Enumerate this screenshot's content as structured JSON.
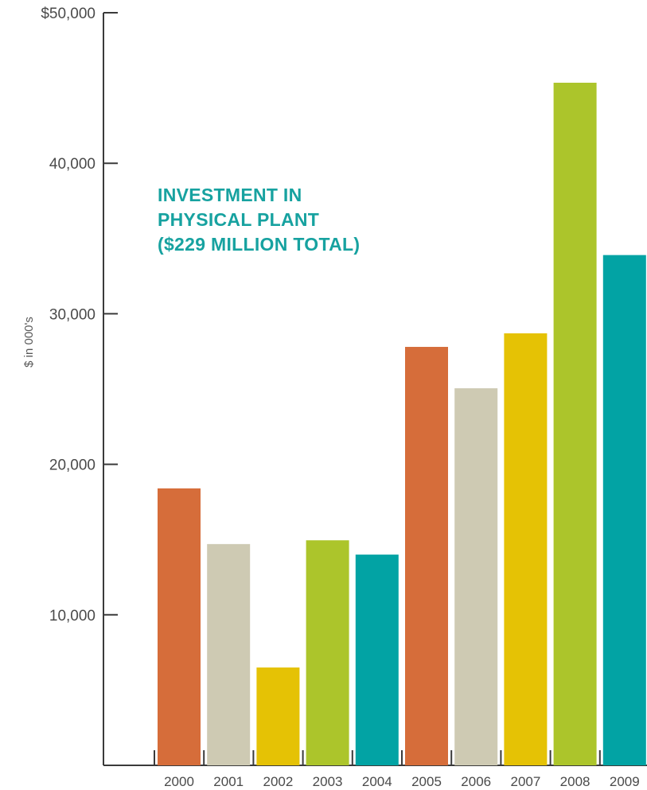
{
  "chart_data": {
    "type": "bar",
    "title_lines": [
      "INVESTMENT IN",
      "PHYSICAL PLANT",
      "($229 MILLION TOTAL)"
    ],
    "ylabel": "$ in 000's",
    "xlabel": "",
    "ylim": [
      0,
      50000
    ],
    "yticks": [
      {
        "value": 10000,
        "label": "10,000"
      },
      {
        "value": 20000,
        "label": "20,000"
      },
      {
        "value": 30000,
        "label": "30,000"
      },
      {
        "value": 40000,
        "label": "40,000"
      },
      {
        "value": 50000,
        "label": "$50,000"
      }
    ],
    "categories": [
      "2000",
      "2001",
      "2002",
      "2003",
      "2004",
      "2005",
      "2006",
      "2007",
      "2008",
      "2009"
    ],
    "values": [
      18400,
      14700,
      6500,
      14950,
      14000,
      27800,
      25050,
      28700,
      45350,
      33900
    ],
    "colors": [
      "#d66d3a",
      "#cecab3",
      "#e5c205",
      "#acc52b",
      "#02a3a4",
      "#d66d3a",
      "#cecab3",
      "#e5c205",
      "#acc52b",
      "#02a3a4"
    ],
    "grid": false,
    "legend": "none"
  }
}
